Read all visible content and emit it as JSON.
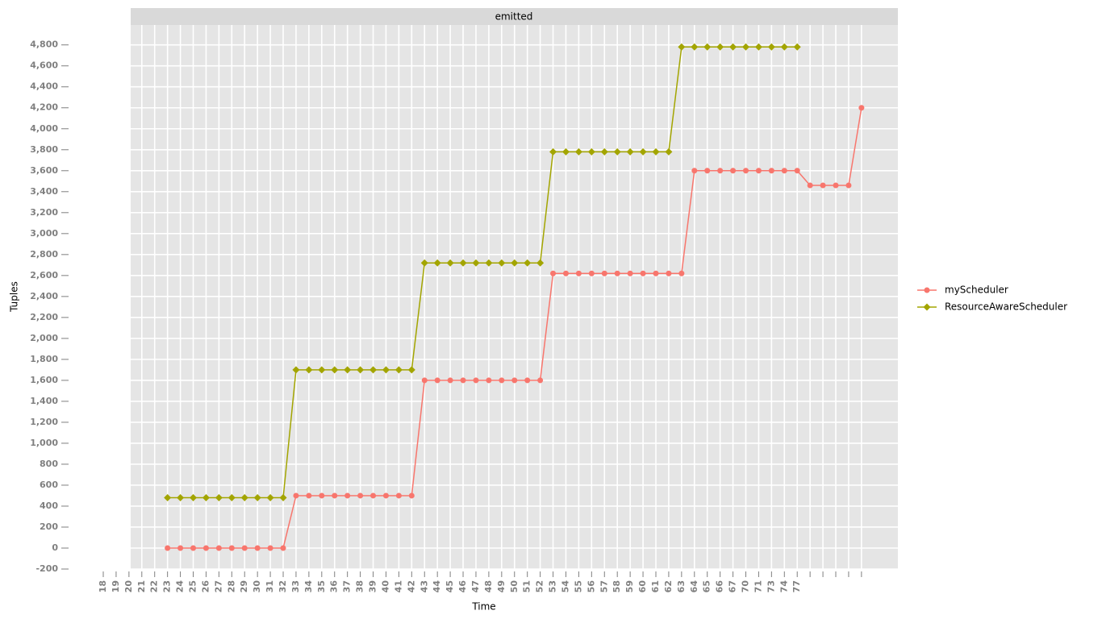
{
  "chart_data": {
    "type": "line",
    "title": "emitted",
    "xlabel": "Time",
    "ylabel": "Tuples",
    "categories": [
      "18",
      "19",
      "20",
      "21",
      "22",
      "23",
      "24",
      "25",
      "26",
      "27",
      "28",
      "29",
      "30",
      "31",
      "32",
      "33",
      "34",
      "35",
      "36",
      "37",
      "38",
      "39",
      "40",
      "41",
      "42",
      "43",
      "44",
      "45",
      "46",
      "47",
      "48",
      "49",
      "50",
      "51",
      "52",
      "53",
      "54",
      "55",
      "56",
      "57",
      "58",
      "59",
      "60",
      "61",
      "62",
      "63",
      "64",
      "65",
      "66",
      "67",
      "70",
      "71",
      "73",
      "74",
      "77",
      null,
      null,
      null,
      null,
      null
    ],
    "series": [
      {
        "name": "myScheduler",
        "color": "#f8766d",
        "marker": "circle",
        "values": [
          null,
          null,
          null,
          null,
          null,
          0,
          0,
          0,
          0,
          0,
          0,
          0,
          0,
          0,
          0,
          500,
          500,
          500,
          500,
          500,
          500,
          500,
          500,
          500,
          500,
          1600,
          1600,
          1600,
          1600,
          1600,
          1600,
          1600,
          1600,
          1600,
          1600,
          2620,
          2620,
          2620,
          2620,
          2620,
          2620,
          2620,
          2620,
          2620,
          2620,
          2620,
          3600,
          3600,
          3600,
          3600,
          3600,
          3600,
          3600,
          3600,
          3600,
          3460,
          3460,
          3460,
          3460,
          4200
        ]
      },
      {
        "name": "ResourceAwareScheduler",
        "color": "#a3a500",
        "marker": "diamond",
        "values": [
          null,
          null,
          null,
          null,
          null,
          480,
          480,
          480,
          480,
          480,
          480,
          480,
          480,
          480,
          480,
          1700,
          1700,
          1700,
          1700,
          1700,
          1700,
          1700,
          1700,
          1700,
          1700,
          2720,
          2720,
          2720,
          2720,
          2720,
          2720,
          2720,
          2720,
          2720,
          2720,
          3780,
          3780,
          3780,
          3780,
          3780,
          3780,
          3780,
          3780,
          3780,
          3780,
          4780,
          4780,
          4780,
          4780,
          4780,
          4780,
          4780,
          4780,
          4780,
          4780,
          null,
          null,
          null,
          null,
          null
        ]
      }
    ],
    "ylim": [
      -200,
      4990
    ],
    "yticks": [
      -200,
      0,
      200,
      400,
      600,
      800,
      {
        "value": 1000,
        "label": "1,000"
      },
      {
        "value": 1200,
        "label": "1,200"
      },
      {
        "value": 1400,
        "label": "1,400"
      },
      {
        "value": 1600,
        "label": "1,600"
      },
      {
        "value": 1800,
        "label": "1,800"
      },
      {
        "value": 2000,
        "label": "2,000"
      },
      {
        "value": 2200,
        "label": "2,200"
      },
      {
        "value": 2400,
        "label": "2,400"
      },
      {
        "value": 2600,
        "label": "2,600"
      },
      {
        "value": 2800,
        "label": "2,800"
      },
      {
        "value": 3000,
        "label": "3,000"
      },
      {
        "value": 3200,
        "label": "3,200"
      },
      {
        "value": 3400,
        "label": "3,400"
      },
      {
        "value": 3600,
        "label": "3,600"
      },
      {
        "value": 3800,
        "label": "3,800"
      },
      {
        "value": 4000,
        "label": "4,000"
      },
      {
        "value": 4200,
        "label": "4,200"
      },
      {
        "value": 4400,
        "label": "4,400"
      },
      {
        "value": 4600,
        "label": "4,600"
      },
      {
        "value": 4800,
        "label": "4,800"
      }
    ],
    "grid": true,
    "legend": "right"
  }
}
